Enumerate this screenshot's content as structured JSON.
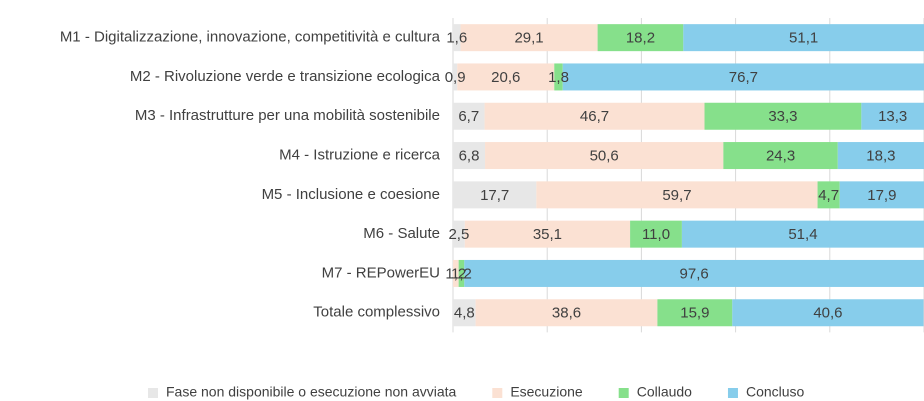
{
  "chart_data": {
    "type": "stacked_bar_horizontal",
    "categories": [
      "M1 - Digitalizzazione, innovazione, competitività e cultura",
      "M2 - Rivoluzione verde e transizione ecologica",
      "M3 - Infrastrutture per una mobilità sostenibile",
      "M4 - Istruzione e ricerca",
      "M5 - Inclusione e coesione",
      "M6 - Salute",
      "M7 - REPowerEU",
      "Totale complessivo"
    ],
    "series": [
      {
        "name": "Fase non disponibile o esecuzione non avviata",
        "color": "#e7e7e7",
        "values": [
          1.6,
          0.9,
          6.7,
          6.8,
          17.7,
          2.5,
          0,
          4.8
        ],
        "value_labels": [
          "1,6",
          "0,9",
          "6,7",
          "6,8",
          "17,7",
          "2,5",
          null,
          "4,8"
        ]
      },
      {
        "name": "Esecuzione",
        "color": "#fbe1d3",
        "values": [
          29.1,
          20.6,
          46.7,
          50.6,
          59.7,
          35.1,
          1.2,
          38.6
        ],
        "value_labels": [
          "29,1",
          "20,6",
          "46,7",
          "50,6",
          "59,7",
          "35,1",
          "1,2",
          "38,6"
        ]
      },
      {
        "name": "Collaudo",
        "color": "#86e08b",
        "values": [
          18.2,
          1.8,
          33.3,
          24.3,
          4.7,
          11.0,
          1.2,
          15.9
        ],
        "value_labels": [
          "18,2",
          "1,8",
          "33,3",
          "24,3",
          "4,7",
          "11,0",
          "1,2",
          "15,9"
        ]
      },
      {
        "name": "Concluso",
        "color": "#87cdeb",
        "values": [
          51.1,
          76.7,
          13.3,
          18.3,
          17.9,
          51.4,
          97.6,
          40.6
        ],
        "value_labels": [
          "51,1",
          "76,7",
          "13,3",
          "18,3",
          "17,9",
          "51,4",
          "97,6",
          "40,6"
        ]
      }
    ],
    "xlim": [
      0,
      100
    ],
    "xticks": [
      0,
      20,
      40,
      60,
      80,
      100
    ],
    "grid": true,
    "legend": "bottom"
  }
}
